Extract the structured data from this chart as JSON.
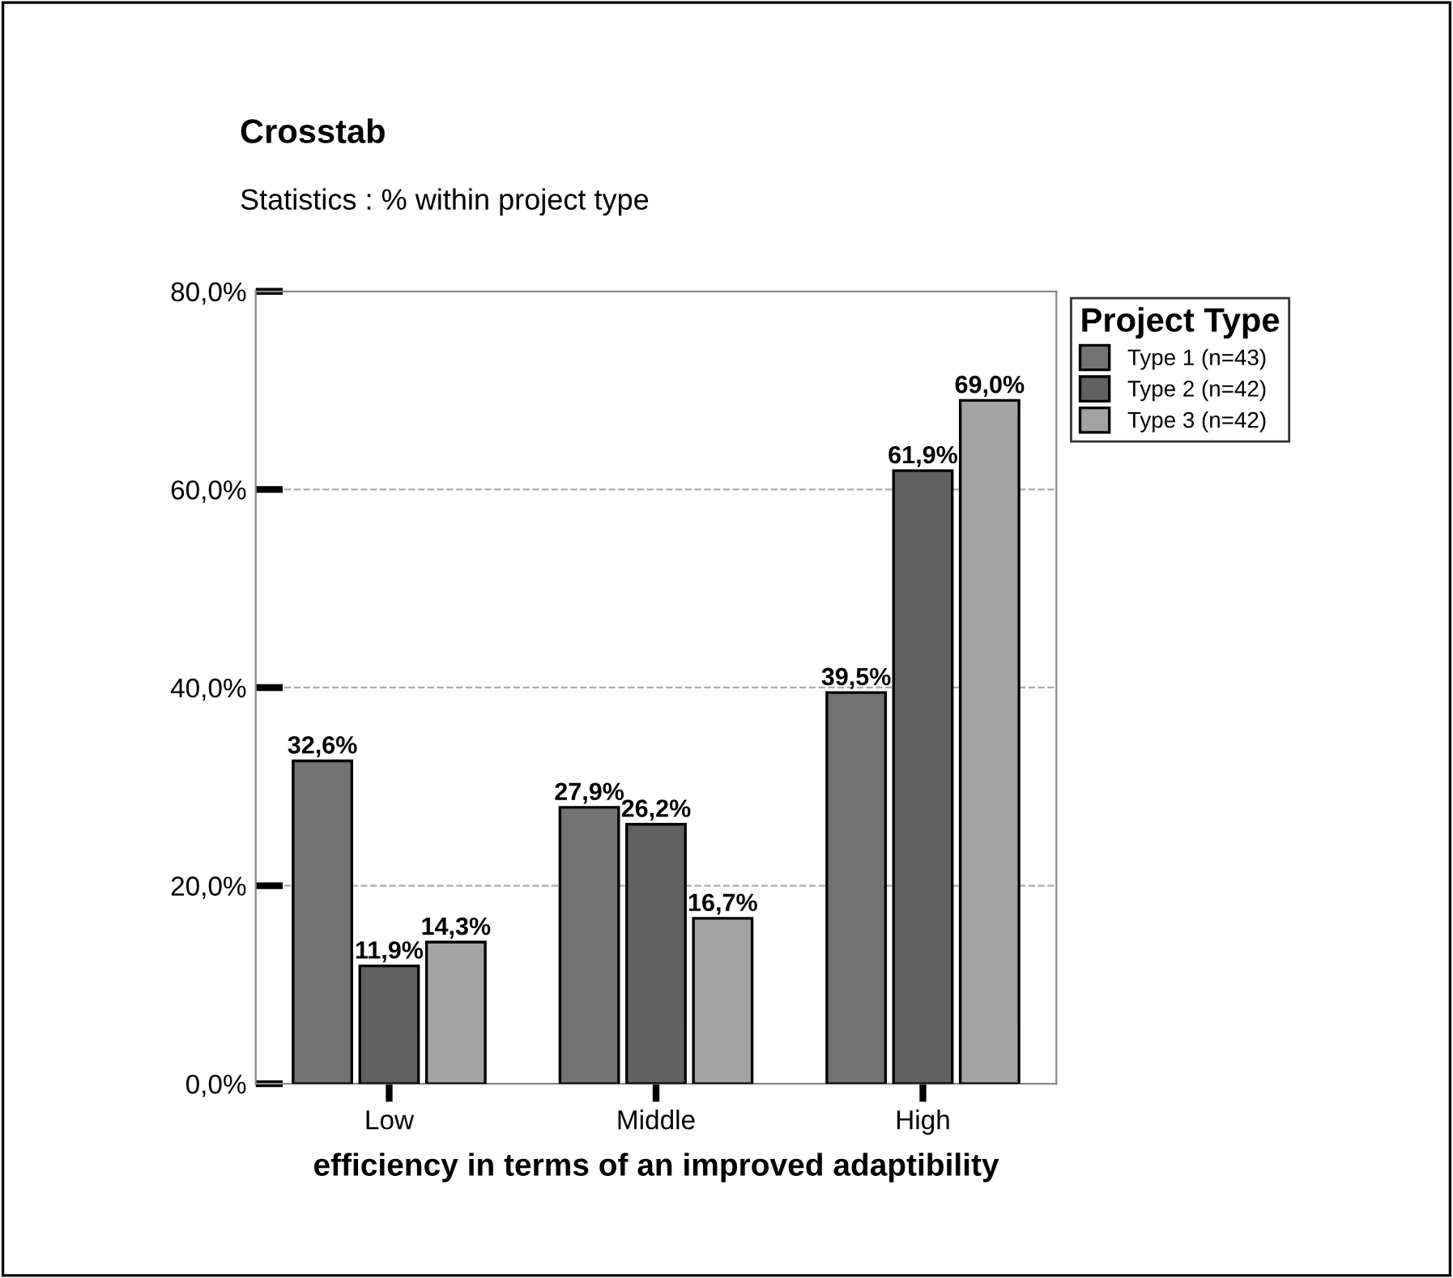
{
  "chart_data": {
    "type": "bar",
    "title": "Crosstab",
    "subtitle": "Statistics : % within project type",
    "xlabel": "efficiency in terms of an improved adaptibility",
    "legend_title": "Project Type",
    "categories": [
      "Low",
      "Middle",
      "High"
    ],
    "series": [
      {
        "name": "Type 1 (n=43)",
        "color": "#737373",
        "values": [
          32.6,
          27.9,
          39.5
        ],
        "value_labels": [
          "32,6%",
          "27,9%",
          "39,5%"
        ]
      },
      {
        "name": "Type 2 (n=42)",
        "color": "#616161",
        "values": [
          11.9,
          26.2,
          61.9
        ],
        "value_labels": [
          "11,9%",
          "26,2%",
          "61,9%"
        ]
      },
      {
        "name": "Type 3 (n=42)",
        "color": "#a3a3a3",
        "values": [
          14.3,
          16.7,
          69.0
        ],
        "value_labels": [
          "14,3%",
          "16,7%",
          "69,0%"
        ]
      }
    ],
    "ylim": [
      0,
      80
    ],
    "yticks": [
      {
        "value": 0,
        "label": "0,0%"
      },
      {
        "value": 20,
        "label": "20,0%"
      },
      {
        "value": 40,
        "label": "40,0%"
      },
      {
        "value": 60,
        "label": "60,0%"
      },
      {
        "value": 80,
        "label": "80,0%"
      }
    ],
    "grid": "y",
    "legend": "top right"
  }
}
